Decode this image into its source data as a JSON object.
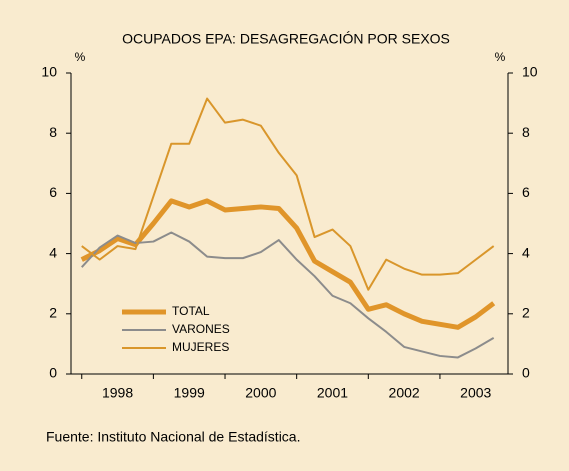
{
  "chart_data": {
    "type": "line",
    "title": "OCUPADOS EPA: DESAGREGACIÓN POR SEXOS",
    "y_unit": "%",
    "y2_unit": "%",
    "source": "Fuente: Instituto Nacional de Estadística.",
    "x": [
      1998.0,
      1998.25,
      1998.5,
      1998.75,
      1999.0,
      1999.25,
      1999.5,
      1999.75,
      2000.0,
      2000.25,
      2000.5,
      2000.75,
      2001.0,
      2001.25,
      2001.5,
      2001.75,
      2002.0,
      2002.25,
      2002.5,
      2002.75,
      2003.0,
      2003.25,
      2003.5,
      2003.75
    ],
    "xlim": [
      1997.85,
      2003.95
    ],
    "xticks": [
      {
        "value": 1998.5,
        "label": "1998"
      },
      {
        "value": 1999.5,
        "label": "1999"
      },
      {
        "value": 2000.5,
        "label": "2000"
      },
      {
        "value": 2001.5,
        "label": "2001"
      },
      {
        "value": 2002.5,
        "label": "2002"
      },
      {
        "value": 2003.5,
        "label": "2003"
      }
    ],
    "ylim": [
      0,
      10
    ],
    "yticks": [
      0,
      2,
      4,
      6,
      8,
      10
    ],
    "y2lim": [
      0,
      10
    ],
    "y2ticks": [
      0,
      2,
      4,
      6,
      8,
      10
    ],
    "legend": "lower-left",
    "series": [
      {
        "name": "TOTAL",
        "color": "#e0952a",
        "width": 5,
        "values": [
          3.8,
          4.1,
          4.5,
          4.3,
          5.0,
          5.75,
          5.55,
          5.75,
          5.45,
          5.5,
          5.55,
          5.5,
          4.85,
          3.75,
          3.4,
          3.05,
          2.15,
          2.3,
          2.0,
          1.75,
          1.65,
          1.55,
          1.9,
          2.35
        ]
      },
      {
        "name": "VARONES",
        "color": "#8c8c8c",
        "width": 2,
        "values": [
          3.55,
          4.2,
          4.6,
          4.35,
          4.4,
          4.7,
          4.4,
          3.9,
          3.85,
          3.85,
          4.05,
          4.45,
          3.8,
          3.25,
          2.6,
          2.35,
          1.85,
          1.4,
          0.9,
          0.75,
          0.6,
          0.55,
          0.85,
          1.2
        ]
      },
      {
        "name": "MUJERES",
        "color": "#d9962b",
        "width": 2,
        "values": [
          4.25,
          3.8,
          4.25,
          4.15,
          5.9,
          7.65,
          7.65,
          9.15,
          8.35,
          8.45,
          8.25,
          7.35,
          6.6,
          4.55,
          4.8,
          4.25,
          2.8,
          3.8,
          3.5,
          3.3,
          3.3,
          3.35,
          3.8,
          4.25
        ]
      }
    ]
  }
}
